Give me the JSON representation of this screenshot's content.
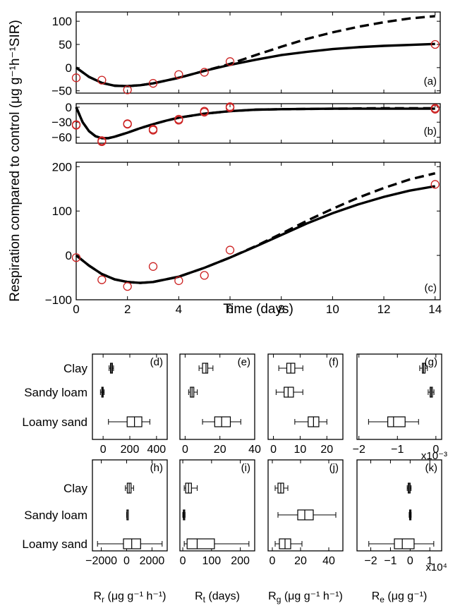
{
  "chart_data": [
    {
      "panel": "(a)",
      "type": "line",
      "ylim": [
        -55,
        120
      ],
      "yticks": [
        -50,
        0,
        50,
        100
      ],
      "xlim": [
        0,
        14.2
      ],
      "xticks": [
        0,
        2,
        4,
        6,
        8,
        10,
        12,
        14
      ],
      "show_xticklabels": false,
      "observed": {
        "x": [
          0,
          1,
          2,
          3,
          4,
          5,
          6,
          14
        ],
        "y": [
          -22,
          -27,
          -48,
          -34,
          -15,
          -10,
          13,
          50
        ]
      },
      "model_solid": {
        "x": [
          0,
          0.5,
          1,
          1.5,
          2,
          2.5,
          3,
          4,
          5,
          6,
          7,
          8,
          9,
          10,
          11,
          12,
          13,
          14
        ],
        "y": [
          0,
          -20,
          -33,
          -39,
          -40,
          -38,
          -34,
          -22,
          -7,
          6,
          17,
          27,
          34,
          40,
          44,
          47,
          49,
          51
        ]
      },
      "model_dashed": {
        "x": [
          0,
          0.5,
          1,
          1.5,
          2,
          2.5,
          3,
          4,
          5,
          6,
          7,
          8,
          9,
          10,
          11,
          12,
          13,
          14
        ],
        "y": [
          0,
          -20,
          -33,
          -39,
          -40,
          -38,
          -34,
          -22,
          -7,
          8,
          27,
          45,
          62,
          76,
          88,
          98,
          106,
          111
        ]
      }
    },
    {
      "panel": "(b)",
      "type": "line",
      "ylim": [
        -72,
        7
      ],
      "yticks": [
        -60,
        -30,
        0
      ],
      "xlim": [
        0,
        14.2
      ],
      "xticks": [
        0,
        2,
        4,
        6,
        8,
        10,
        12,
        14
      ],
      "show_xticklabels": false,
      "observed": {
        "x": [
          0,
          0,
          1,
          1,
          2,
          2,
          3,
          3,
          4,
          4,
          5,
          5,
          6,
          6,
          14,
          14
        ],
        "y": [
          -35,
          -36,
          -67,
          -69,
          -33,
          -34,
          -44,
          -46,
          -24,
          -26,
          -8,
          -10,
          1,
          -1,
          -2,
          -4
        ]
      },
      "model_solid": {
        "x": [
          0,
          0.25,
          0.5,
          0.75,
          1,
          1.25,
          1.5,
          2,
          2.5,
          3,
          3.5,
          4,
          5,
          6,
          7,
          8,
          10,
          12,
          14
        ],
        "y": [
          0,
          -30,
          -48,
          -58,
          -62,
          -62,
          -59,
          -51,
          -42,
          -34,
          -27,
          -21,
          -13,
          -8,
          -5,
          -4,
          -3,
          -3,
          -3
        ]
      },
      "model_dashed": {
        "x": [
          0,
          0.25,
          0.5,
          0.75,
          1,
          1.25,
          1.5,
          2,
          2.5,
          3,
          3.5,
          4,
          5,
          6,
          7,
          8,
          10,
          12,
          14
        ],
        "y": [
          0,
          -30,
          -48,
          -58,
          -62,
          -62,
          -59,
          -51,
          -42,
          -34,
          -27,
          -21,
          -13,
          -8,
          -5,
          -4,
          -3,
          -2,
          -2
        ]
      }
    },
    {
      "panel": "(c)",
      "type": "line",
      "ylim": [
        -100,
        210
      ],
      "yticks": [
        -100,
        0,
        100,
        200
      ],
      "xlim": [
        0,
        14.2
      ],
      "xticks": [
        0,
        2,
        4,
        6,
        8,
        10,
        12,
        14
      ],
      "show_xticklabels": true,
      "xlabel": "Time (days)",
      "observed": {
        "x": [
          0,
          1,
          2,
          3,
          4,
          5,
          6,
          14
        ],
        "y": [
          -5,
          -55,
          -70,
          -25,
          -57,
          -45,
          12,
          160
        ]
      },
      "model_solid": {
        "x": [
          0,
          0.5,
          1,
          1.5,
          2,
          2.5,
          3,
          4,
          5,
          6,
          7,
          8,
          9,
          10,
          11,
          12,
          13,
          14
        ],
        "y": [
          0,
          -23,
          -42,
          -54,
          -60,
          -62,
          -60,
          -48,
          -28,
          -5,
          20,
          46,
          72,
          95,
          115,
          132,
          146,
          156
        ]
      },
      "model_dashed": {
        "x": [
          0,
          0.5,
          1,
          1.5,
          2,
          2.5,
          3,
          4,
          5,
          6,
          7,
          8,
          9,
          10,
          11,
          12,
          13,
          14
        ],
        "y": [
          0,
          -23,
          -42,
          -54,
          -60,
          -62,
          -60,
          -48,
          -28,
          -5,
          21,
          49,
          78,
          105,
          130,
          152,
          171,
          185
        ]
      }
    }
  ],
  "ylabel_shared": "Respiration compared to control (μg g⁻¹h⁻¹SIR)",
  "boxplots": {
    "categories": [
      "Clay",
      "Sandy loam",
      "Loamy sand"
    ],
    "panels": [
      {
        "panel": "(d)",
        "xlim": [
          -80,
          480
        ],
        "xticks": [
          0,
          200,
          400
        ],
        "xticklabels": [
          "0",
          "200",
          "400"
        ],
        "xlabel": "R_r (μg g⁻¹ h⁻¹)",
        "boxes": [
          {
            "lw": 45,
            "q1": 55,
            "med": 62,
            "q3": 70,
            "hw": 78
          },
          {
            "lw": -20,
            "q1": -10,
            "med": -5,
            "q3": 0,
            "hw": 8
          },
          {
            "lw": 40,
            "q1": 180,
            "med": 235,
            "q3": 290,
            "hw": 350
          }
        ]
      },
      {
        "panel": "(e)",
        "xlim": [
          -3,
          40
        ],
        "xticks": [
          0,
          20,
          40
        ],
        "xticklabels": [
          "0",
          "20",
          "40"
        ],
        "xlabel": "R_t (days)",
        "boxes": [
          {
            "lw": 8,
            "q1": 10,
            "med": 12,
            "q3": 13,
            "hw": 16
          },
          {
            "lw": 2,
            "q1": 3,
            "med": 4,
            "q3": 5,
            "hw": 7
          },
          {
            "lw": 10,
            "q1": 17,
            "med": 21,
            "q3": 26,
            "hw": 32
          }
        ]
      },
      {
        "panel": "(f)",
        "xlim": [
          -2,
          26
        ],
        "xticks": [
          0,
          10,
          20
        ],
        "xticklabels": [
          "0",
          "10",
          "20"
        ],
        "xlabel": "R_g (μg g⁻¹ h⁻¹)",
        "boxes": [
          {
            "lw": 2,
            "q1": 5,
            "med": 6.5,
            "q3": 8,
            "hw": 11
          },
          {
            "lw": 1,
            "q1": 4,
            "med": 5.5,
            "q3": 7.5,
            "hw": 11
          },
          {
            "lw": 8,
            "q1": 13,
            "med": 15,
            "q3": 17,
            "hw": 20
          }
        ]
      },
      {
        "panel": "(g)",
        "xlim": [
          -2.05,
          0.15
        ],
        "xticks": [
          -2,
          -1,
          0
        ],
        "xticklabels": [
          "−2",
          "−1",
          "0"
        ],
        "xlabel": "R_e (μg g⁻¹)",
        "exponent": "x10⁻³",
        "boxes": [
          {
            "lw": -0.42,
            "q1": -0.35,
            "med": -0.32,
            "q3": -0.28,
            "hw": -0.22
          },
          {
            "lw": -0.2,
            "q1": -0.15,
            "med": -0.12,
            "q3": -0.09,
            "hw": -0.05
          },
          {
            "lw": -1.75,
            "q1": -1.25,
            "med": -1.1,
            "q3": -0.8,
            "hw": -0.45
          }
        ]
      },
      {
        "panel": "(h)",
        "xlim": [
          -2700,
          3200
        ],
        "xticks": [
          -2000,
          0,
          2000
        ],
        "xticklabels": [
          "−2000",
          "0",
          "2000"
        ],
        "xlabel": "R_r (μg g⁻¹ h⁻¹)",
        "boxes": [
          {
            "lw": -100,
            "q1": 50,
            "med": 200,
            "q3": 350,
            "hw": 550
          },
          {
            "lw": 0,
            "q1": 20,
            "med": 40,
            "q3": 60,
            "hw": 80
          },
          {
            "lw": -2300,
            "q1": -250,
            "med": 400,
            "q3": 1100,
            "hw": 2800
          }
        ]
      },
      {
        "panel": "(i)",
        "xlim": [
          -10,
          250
        ],
        "xticks": [
          0,
          100,
          200
        ],
        "xticklabels": [
          "0",
          "100",
          "200"
        ],
        "xlabel": "R_t (days)",
        "boxes": [
          {
            "lw": 5,
            "q1": 10,
            "med": 20,
            "q3": 30,
            "hw": 50
          },
          {
            "lw": 0,
            "q1": 2,
            "med": 4,
            "q3": 6,
            "hw": 8
          },
          {
            "lw": 5,
            "q1": 15,
            "med": 50,
            "q3": 110,
            "hw": 230
          }
        ]
      },
      {
        "panel": "(j)",
        "xlim": [
          -3,
          50
        ],
        "xticks": [
          0,
          20,
          40
        ],
        "xticklabels": [
          "0",
          "20",
          "40"
        ],
        "xlabel": "R_g (μg g⁻¹ h⁻¹)",
        "boxes": [
          {
            "lw": 2,
            "q1": 4,
            "med": 6,
            "q3": 8,
            "hw": 11
          },
          {
            "lw": 4,
            "q1": 18,
            "med": 23,
            "q3": 29,
            "hw": 45
          },
          {
            "lw": 2,
            "q1": 5,
            "med": 9,
            "q3": 13,
            "hw": 21
          }
        ]
      },
      {
        "panel": "(k)",
        "xlim": [
          -2.7,
          1.6
        ],
        "xticks": [
          -2,
          -1,
          0,
          1
        ],
        "xticklabels": [
          "−2",
          "−1",
          "0",
          "1"
        ],
        "xlabel": "R_e (μg g⁻¹)",
        "exponent": "x10⁴",
        "boxes": [
          {
            "lw": -0.15,
            "q1": -0.1,
            "med": -0.05,
            "q3": 0.0,
            "hw": 0.05
          },
          {
            "lw": -0.05,
            "q1": -0.03,
            "med": 0.0,
            "q3": 0.02,
            "hw": 0.05
          },
          {
            "lw": -2.1,
            "q1": -0.8,
            "med": -0.4,
            "q3": 0.2,
            "hw": 1.2
          }
        ]
      }
    ]
  }
}
